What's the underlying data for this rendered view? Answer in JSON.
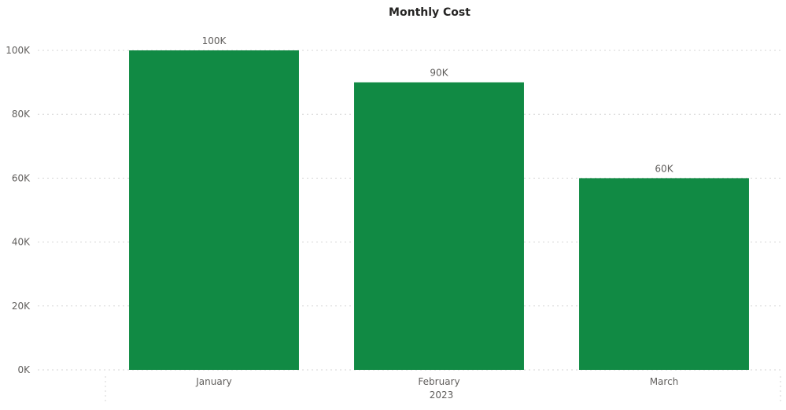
{
  "chart_data": {
    "type": "bar",
    "title": "Monthly Cost",
    "categories": [
      "January",
      "February",
      "March"
    ],
    "values": [
      100000,
      90000,
      60000
    ],
    "data_labels": [
      "100K",
      "90K",
      "60K"
    ],
    "group_label": "2023",
    "y_ticks": [
      0,
      20000,
      40000,
      60000,
      80000,
      100000
    ],
    "y_tick_labels": [
      "0K",
      "20K",
      "40K",
      "60K",
      "80K",
      "100K"
    ],
    "ylim": [
      0,
      100000
    ],
    "grid": true,
    "bar_color": "#118a44"
  }
}
